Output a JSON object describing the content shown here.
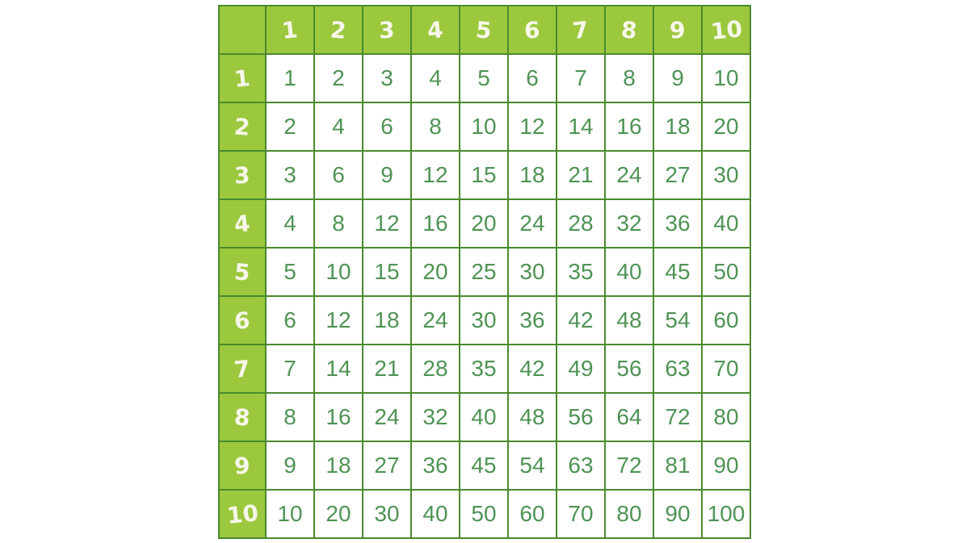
{
  "colors": {
    "header_fill": "#9cc83e",
    "border": "#4a8a2e",
    "cell_text": "#4f9355",
    "header_text": "#f6f7ea",
    "background": "#ffffff"
  },
  "chart_data": {
    "type": "table",
    "description": "Multiplication table grid, factors 1 through 10",
    "corner_label": "",
    "column_headers": [
      "1",
      "2",
      "3",
      "4",
      "5",
      "6",
      "7",
      "8",
      "9",
      "10"
    ],
    "row_headers": [
      "1",
      "2",
      "3",
      "4",
      "5",
      "6",
      "7",
      "8",
      "9",
      "10"
    ],
    "rows": [
      [
        1,
        2,
        3,
        4,
        5,
        6,
        7,
        8,
        9,
        10
      ],
      [
        2,
        4,
        6,
        8,
        10,
        12,
        14,
        16,
        18,
        20
      ],
      [
        3,
        6,
        9,
        12,
        15,
        18,
        21,
        24,
        27,
        30
      ],
      [
        4,
        8,
        12,
        16,
        20,
        24,
        28,
        32,
        36,
        40
      ],
      [
        5,
        10,
        15,
        20,
        25,
        30,
        35,
        40,
        45,
        50
      ],
      [
        6,
        12,
        18,
        24,
        30,
        36,
        42,
        48,
        54,
        60
      ],
      [
        7,
        14,
        21,
        28,
        35,
        42,
        49,
        56,
        63,
        70
      ],
      [
        8,
        16,
        24,
        32,
        40,
        48,
        56,
        64,
        72,
        80
      ],
      [
        9,
        18,
        27,
        36,
        45,
        54,
        63,
        72,
        81,
        90
      ],
      [
        10,
        20,
        30,
        40,
        50,
        60,
        70,
        80,
        90,
        100
      ]
    ]
  }
}
